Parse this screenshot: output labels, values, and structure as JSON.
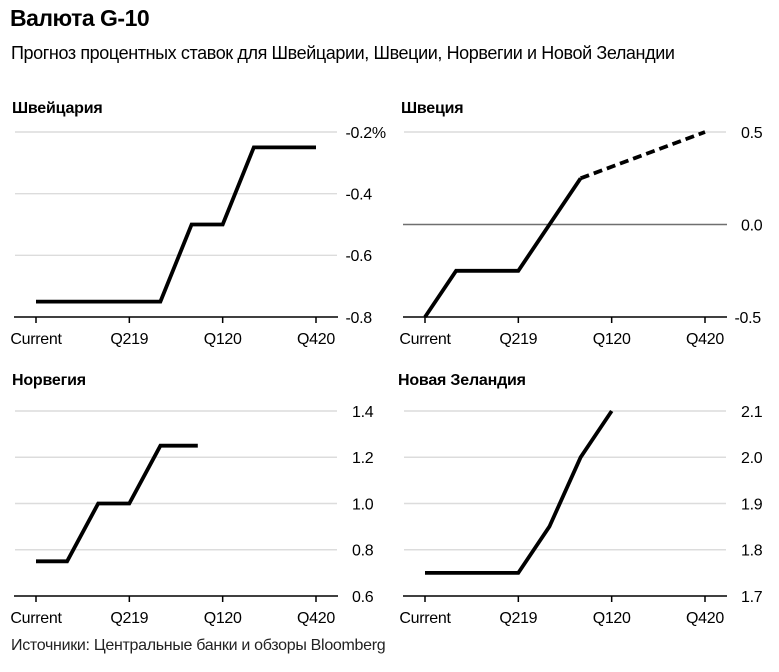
{
  "header": {
    "title": "Валюта G-10",
    "subtitle": "Прогноз процентных ставок для Швейцарии, Швеции, Норвегии и Новой Зеландии"
  },
  "footer": {
    "sources": "Источники: Центральные банки и обзоры Bloomberg"
  },
  "colors": {
    "background": "#ffffff",
    "text": "#000000",
    "series_line": "#000000",
    "gridline": "#dcdcdc",
    "zero_line": "#6f6f6f",
    "axis_line": "#000000"
  },
  "chart_data": [
    {
      "type": "line",
      "title": "Швейцария",
      "xlim": [
        0,
        9
      ],
      "ylim": [
        -0.8,
        -0.2
      ],
      "grid": true,
      "legend": "none",
      "y_axis_side": "right",
      "x_ticks": {
        "positions": [
          0,
          3,
          6,
          9
        ],
        "labels": [
          "Current",
          "Q219",
          "Q120",
          "Q420"
        ]
      },
      "y_ticks": {
        "values": [
          -0.2,
          -0.4,
          -0.6,
          -0.8
        ],
        "labels": [
          "-0.2%",
          "-0.4",
          "-0.6",
          "-0.8"
        ]
      },
      "series": [
        {
          "name": "rate-forecast",
          "style": "solid",
          "points": [
            [
              0,
              -0.75
            ],
            [
              4,
              -0.75
            ],
            [
              5,
              -0.5
            ],
            [
              6,
              -0.5
            ],
            [
              7,
              -0.25
            ],
            [
              9,
              -0.25
            ]
          ]
        }
      ]
    },
    {
      "type": "line",
      "title": "Швеция",
      "xlim": [
        0,
        9
      ],
      "ylim": [
        -0.5,
        0.5
      ],
      "grid": true,
      "legend": "none",
      "y_axis_side": "right",
      "zero_line_value": 0.0,
      "x_ticks": {
        "positions": [
          0,
          3,
          6,
          9
        ],
        "labels": [
          "Current",
          "Q219",
          "Q120",
          "Q420"
        ]
      },
      "y_ticks": {
        "values": [
          0.5,
          0.0,
          -0.5
        ],
        "labels": [
          "0.5",
          "0.0",
          "-0.5"
        ]
      },
      "series": [
        {
          "name": "rate-path",
          "style": "solid",
          "points": [
            [
              0,
              -0.5
            ],
            [
              1,
              -0.25
            ],
            [
              3,
              -0.25
            ],
            [
              5,
              0.25
            ]
          ]
        },
        {
          "name": "rate-forecast-dashed",
          "style": "dashed",
          "points": [
            [
              5,
              0.25
            ],
            [
              9,
              0.5
            ]
          ]
        }
      ]
    },
    {
      "type": "line",
      "title": "Норвегия",
      "xlim": [
        0,
        9
      ],
      "ylim": [
        0.6,
        1.4
      ],
      "grid": true,
      "legend": "none",
      "y_axis_side": "right",
      "x_ticks": {
        "positions": [
          0,
          3,
          6,
          9
        ],
        "labels": [
          "Current",
          "Q219",
          "Q120",
          "Q420"
        ]
      },
      "y_ticks": {
        "values": [
          1.4,
          1.2,
          1.0,
          0.8,
          0.6
        ],
        "labels": [
          "1.4",
          "1.2",
          "1.0",
          "0.8",
          "0.6"
        ]
      },
      "series": [
        {
          "name": "rate-forecast",
          "style": "solid",
          "points": [
            [
              0,
              0.75
            ],
            [
              1,
              0.75
            ],
            [
              2,
              1.0
            ],
            [
              3,
              1.0
            ],
            [
              4,
              1.25
            ],
            [
              5.2,
              1.25
            ]
          ]
        }
      ]
    },
    {
      "type": "line",
      "title": "Новая Зеландия",
      "xlim": [
        0,
        9
      ],
      "ylim": [
        1.7,
        2.1
      ],
      "grid": true,
      "legend": "none",
      "y_axis_side": "right",
      "x_ticks": {
        "positions": [
          0,
          3,
          6,
          9
        ],
        "labels": [
          "Current",
          "Q219",
          "Q120",
          "Q420"
        ]
      },
      "y_ticks": {
        "values": [
          2.1,
          2.0,
          1.9,
          1.8,
          1.7
        ],
        "labels": [
          "2.1",
          "2.0",
          "1.9",
          "1.8",
          "1.7"
        ]
      },
      "series": [
        {
          "name": "rate-forecast",
          "style": "solid",
          "points": [
            [
              0,
              1.75
            ],
            [
              3,
              1.75
            ],
            [
              4,
              1.85
            ],
            [
              5,
              2.0
            ],
            [
              6,
              2.1
            ]
          ]
        }
      ]
    }
  ]
}
